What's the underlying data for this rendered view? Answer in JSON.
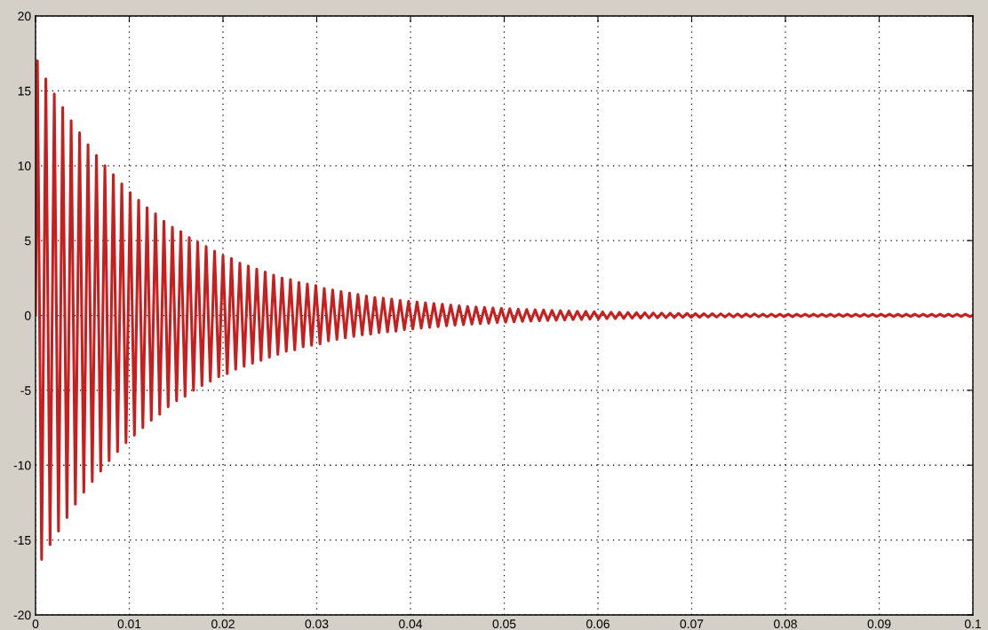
{
  "chart_data": {
    "type": "line",
    "x": [
      0,
      0.0002,
      0.00065,
      0.0011,
      0.00155,
      0.002,
      0.00245,
      0.0029,
      0.00335,
      0.0038,
      0.00425,
      0.0047,
      0.00515,
      0.0056,
      0.00605,
      0.0065,
      0.00695,
      0.0074,
      0.00785,
      0.0083,
      0.00875,
      0.0092,
      0.00965,
      0.0101,
      0.01055,
      0.011,
      0.01145,
      0.0119,
      0.01235,
      0.0128,
      0.01325,
      0.0137,
      0.01415,
      0.0146,
      0.01505,
      0.0155,
      0.01595,
      0.0164,
      0.01685,
      0.0173,
      0.01775,
      0.0182,
      0.01865,
      0.0191,
      0.01955,
      0.02,
      0.02045,
      0.0209,
      0.02135,
      0.0218,
      0.02225,
      0.0227,
      0.02315,
      0.0236,
      0.02405,
      0.0245,
      0.02495,
      0.0254,
      0.02585,
      0.0263,
      0.02675,
      0.0272,
      0.02765,
      0.0281,
      0.02855,
      0.029,
      0.02945,
      0.0299,
      0.03035,
      0.0308,
      0.03125,
      0.0317,
      0.03215,
      0.0326,
      0.03305,
      0.0335,
      0.03395,
      0.0344,
      0.03485,
      0.0353,
      0.03575,
      0.0362,
      0.03665,
      0.0371,
      0.03755,
      0.038,
      0.03845,
      0.0389,
      0.03935,
      0.0398,
      0.04025,
      0.0407,
      0.04115,
      0.0416,
      0.04205,
      0.0425,
      0.04295,
      0.0434,
      0.04385,
      0.0443,
      0.04475,
      0.0452,
      0.04565,
      0.0461,
      0.04655,
      0.047,
      0.04745,
      0.0479,
      0.04835,
      0.0488,
      0.04925,
      0.0497,
      0.05015,
      0.0506,
      0.05105,
      0.0515,
      0.05195,
      0.0524,
      0.05285,
      0.0533,
      0.05375,
      0.0542,
      0.05465,
      0.0551,
      0.05555,
      0.056,
      0.05645,
      0.0569,
      0.05735,
      0.0578,
      0.05825,
      0.0587,
      0.05915,
      0.0596,
      0.06005,
      0.0605,
      0.06095,
      0.0614,
      0.06185,
      0.0623,
      0.06275,
      0.0632,
      0.06365,
      0.0641,
      0.06455,
      0.065,
      0.06545,
      0.0659,
      0.06635,
      0.0668,
      0.06725,
      0.0677,
      0.06815,
      0.0686,
      0.06905,
      0.0695,
      0.06995,
      0.0704,
      0.07085,
      0.0713,
      0.07175,
      0.0722,
      0.07265,
      0.0731,
      0.07355,
      0.074,
      0.07445,
      0.0749,
      0.07535,
      0.0758,
      0.07625,
      0.0767,
      0.07715,
      0.0776,
      0.07805,
      0.0785,
      0.07895,
      0.0794,
      0.07985,
      0.0803,
      0.08075,
      0.0812,
      0.08165,
      0.0821,
      0.08255,
      0.083,
      0.08345,
      0.0839,
      0.08435,
      0.0848,
      0.08525,
      0.0857,
      0.08615,
      0.0866,
      0.08705,
      0.0875,
      0.08795,
      0.0884,
      0.08885,
      0.0893,
      0.08975,
      0.0902,
      0.09065,
      0.0911,
      0.09155,
      0.092,
      0.09245,
      0.0929,
      0.09335,
      0.0938,
      0.09425,
      0.0947,
      0.09515,
      0.0956,
      0.09605,
      0.0965,
      0.09695,
      0.0974,
      0.09785,
      0.0983,
      0.09875,
      0.0992,
      0.09965,
      0.1
    ],
    "series": [
      {
        "color": "#c81e1e",
        "values": [
          0,
          17.0,
          -16.3,
          15.8,
          -15.3,
          14.8,
          -14.4,
          13.9,
          -13.5,
          13.0,
          -12.6,
          12.2,
          -11.8,
          11.4,
          -11.1,
          10.7,
          -10.4,
          10.0,
          -9.7,
          9.4,
          -9.1,
          8.8,
          -8.5,
          8.2,
          -8.0,
          7.7,
          -7.5,
          7.2,
          -7.0,
          6.8,
          -6.6,
          6.3,
          -6.1,
          5.9,
          -5.7,
          5.6,
          -5.4,
          5.2,
          -5.0,
          4.9,
          -4.7,
          4.6,
          -4.4,
          4.3,
          -4.1,
          4.0,
          -3.9,
          3.8,
          -3.6,
          3.5,
          -3.4,
          3.3,
          -3.2,
          3.1,
          -3.0,
          2.9,
          -2.8,
          2.7,
          -2.6,
          2.5,
          -2.4,
          2.4,
          -2.3,
          2.2,
          -2.1,
          2.1,
          -2.0,
          2.0,
          -1.9,
          1.8,
          -1.7,
          1.7,
          -1.6,
          1.6,
          -1.5,
          1.5,
          -1.4,
          1.4,
          -1.3,
          1.3,
          -1.25,
          1.2,
          -1.15,
          1.15,
          -1.1,
          1.1,
          -1.05,
          1.0,
          -0.95,
          0.95,
          -0.9,
          0.9,
          -0.85,
          0.85,
          -0.8,
          0.8,
          -0.75,
          0.75,
          -0.7,
          0.7,
          -0.65,
          0.65,
          -0.62,
          0.6,
          -0.58,
          0.57,
          -0.55,
          0.54,
          -0.52,
          0.5,
          -0.48,
          0.47,
          -0.45,
          0.45,
          -0.43,
          0.42,
          -0.4,
          0.4,
          -0.38,
          0.38,
          -0.36,
          0.36,
          -0.34,
          0.34,
          -0.32,
          0.32,
          -0.3,
          0.3,
          -0.28,
          0.28,
          -0.27,
          0.27,
          -0.25,
          0.25,
          -0.24,
          0.24,
          -0.22,
          0.22,
          -0.21,
          0.21,
          -0.2,
          0.2,
          -0.19,
          0.19,
          -0.18,
          0.18,
          -0.17,
          0.17,
          -0.16,
          0.16,
          -0.15,
          0.15,
          -0.14,
          0.14,
          -0.13,
          0.14,
          -0.13,
          0.13,
          -0.12,
          0.12,
          -0.11,
          0.12,
          -0.11,
          0.11,
          -0.1,
          0.11,
          -0.1,
          0.1,
          -0.1,
          0.1,
          -0.09,
          0.1,
          -0.09,
          0.09,
          -0.09,
          0.09,
          -0.08,
          0.09,
          -0.08,
          0.08,
          -0.08,
          0.08,
          -0.07,
          0.08,
          -0.07,
          0.08,
          -0.07,
          0.08,
          -0.07,
          0.08,
          -0.07,
          0.08,
          -0.07,
          0.08,
          -0.07,
          0.08,
          -0.07,
          0.08,
          -0.07,
          0.08,
          -0.07,
          0.08,
          -0.07,
          0.08,
          -0.07,
          0.08,
          -0.07,
          0.08,
          -0.07,
          0.08,
          -0.07,
          0.08,
          -0.07,
          0.08,
          -0.07,
          0.08,
          -0.07,
          0.08,
          -0.07,
          0.08,
          -0.07,
          0.08,
          -0.07,
          0
        ]
      }
    ],
    "xlim": [
      0,
      0.1
    ],
    "xticks": [
      0,
      0.01,
      0.02,
      0.03,
      0.04,
      0.05,
      0.06,
      0.07,
      0.08,
      0.09,
      0.1
    ],
    "ylim": [
      -20,
      20
    ],
    "yticks": [
      -20,
      -15,
      -10,
      -5,
      0,
      5,
      10,
      15,
      20
    ],
    "grid": true,
    "line_style": "solid",
    "marker": "none",
    "legend": false
  }
}
